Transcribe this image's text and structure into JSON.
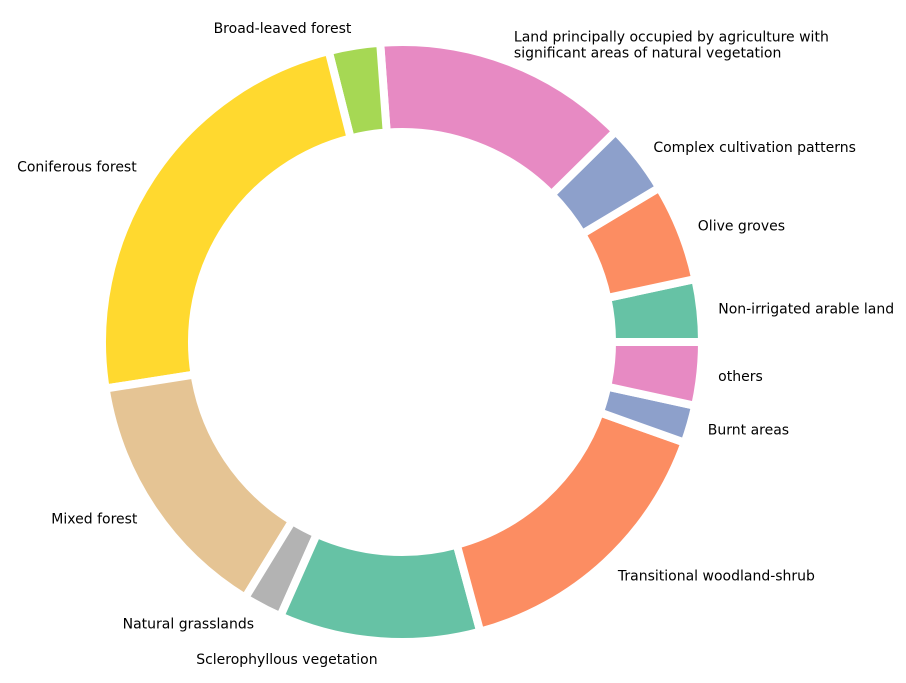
{
  "chart_data": {
    "type": "pie",
    "style": "donut",
    "direction": "counterclockwise",
    "start_angle_deg": 0,
    "slices": [
      {
        "label": "Non-irrigated arable land",
        "value": 3.16,
        "color": "#66c2a5"
      },
      {
        "label": "Olive groves",
        "value": 4.91,
        "color": "#fc8d62"
      },
      {
        "label": "Complex cultivation patterns",
        "value": 3.56,
        "color": "#8da0cb"
      },
      {
        "label": "Land principally occupied by agriculture with\nsignificant areas of natural vegetation",
        "value": 12.92,
        "color": "#e78ac3"
      },
      {
        "label": "Broad-leaved forest",
        "value": 2.6,
        "color": "#a6d854"
      },
      {
        "label": "Coniferous forest",
        "value": 22.1,
        "color": "#ffd92f"
      },
      {
        "label": "Mixed forest",
        "value": 12.92,
        "color": "#e5c494"
      },
      {
        "label": "Natural grasslands",
        "value": 1.98,
        "color": "#b3b3b3"
      },
      {
        "label": "Sclerophyllous vegetation",
        "value": 10.18,
        "color": "#66c2a5"
      },
      {
        "label": "Transitional woodland-shrub",
        "value": 14.41,
        "color": "#fc8d62"
      },
      {
        "label": "Burnt areas",
        "value": 1.91,
        "color": "#8da0cb"
      },
      {
        "label": "others",
        "value": 3.2,
        "color": "#e78ac3"
      }
    ]
  }
}
